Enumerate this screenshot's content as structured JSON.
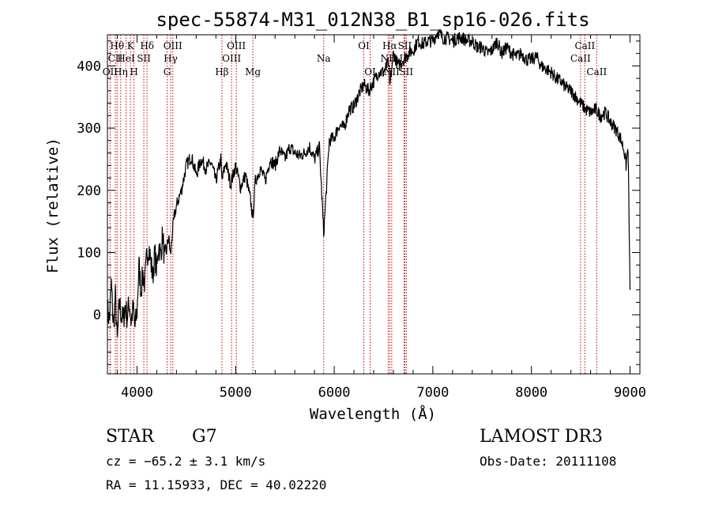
{
  "chart_data": {
    "type": "line",
    "title": "spec-55874-M31_012N38_B1_sp16-026.fits",
    "xlabel": "Wavelength (Å)",
    "ylabel": "Flux (relative)",
    "xlim": [
      3700,
      9100
    ],
    "ylim": [
      -95,
      450
    ],
    "xticks": [
      4000,
      5000,
      6000,
      7000,
      8000,
      9000
    ],
    "yticks": [
      0,
      100,
      200,
      300,
      400
    ],
    "series": [
      {
        "name": "flux",
        "x": [
          3700,
          3720,
          3740,
          3760,
          3780,
          3800,
          3820,
          3840,
          3860,
          3880,
          3900,
          3920,
          3940,
          3960,
          3980,
          4000,
          4020,
          4040,
          4060,
          4080,
          4100,
          4120,
          4140,
          4160,
          4180,
          4200,
          4220,
          4240,
          4260,
          4280,
          4300,
          4320,
          4340,
          4360,
          4380,
          4400,
          4450,
          4500,
          4550,
          4600,
          4650,
          4700,
          4750,
          4800,
          4850,
          4861,
          4900,
          4950,
          5000,
          5050,
          5100,
          5150,
          5175,
          5200,
          5250,
          5300,
          5350,
          5400,
          5450,
          5500,
          5550,
          5600,
          5650,
          5700,
          5750,
          5800,
          5850,
          5893,
          5950,
          6000,
          6050,
          6100,
          6150,
          6200,
          6250,
          6300,
          6350,
          6400,
          6450,
          6500,
          6550,
          6563,
          6600,
          6650,
          6700,
          6750,
          6800,
          6850,
          6900,
          6950,
          7000,
          7050,
          7100,
          7150,
          7200,
          7250,
          7300,
          7350,
          7400,
          7450,
          7500,
          7550,
          7600,
          7650,
          7700,
          7750,
          7800,
          7850,
          7900,
          7950,
          8000,
          8050,
          8100,
          8150,
          8200,
          8250,
          8300,
          8350,
          8400,
          8450,
          8500,
          8550,
          8600,
          8650,
          8700,
          8750,
          8800,
          8850,
          8900,
          8920,
          8940,
          8960,
          8980,
          9000
        ],
        "values": [
          10,
          -10,
          50,
          -20,
          30,
          -45,
          20,
          0,
          -10,
          15,
          -5,
          20,
          -10,
          10,
          -20,
          5,
          80,
          40,
          65,
          50,
          95,
          110,
          85,
          60,
          100,
          70,
          115,
          95,
          130,
          85,
          105,
          125,
          95,
          135,
          160,
          175,
          200,
          240,
          255,
          225,
          250,
          235,
          245,
          215,
          250,
          215,
          245,
          210,
          240,
          205,
          225,
          185,
          155,
          215,
          235,
          215,
          250,
          240,
          265,
          250,
          270,
          260,
          255,
          260,
          270,
          250,
          270,
          130,
          280,
          285,
          305,
          300,
          330,
          335,
          355,
          370,
          360,
          375,
          390,
          390,
          405,
          365,
          420,
          400,
          410,
          420,
          425,
          440,
          435,
          440,
          440,
          455,
          445,
          445,
          440,
          445,
          445,
          440,
          440,
          430,
          430,
          420,
          425,
          440,
          420,
          430,
          420,
          415,
          420,
          410,
          410,
          415,
          400,
          395,
          390,
          380,
          375,
          365,
          360,
          350,
          340,
          330,
          325,
          330,
          320,
          325,
          310,
          300,
          285,
          275,
          265,
          240,
          270,
          40
        ]
      }
    ],
    "lines": [
      {
        "name": "Hθ",
        "x": 3798,
        "row": 1
      },
      {
        "name": "CII",
        "x": 3780,
        "row": 2
      },
      {
        "name": "OII",
        "x": 3727,
        "row": 3
      },
      {
        "name": "Hη",
        "x": 3835,
        "row": 3
      },
      {
        "name": "K",
        "x": 3934,
        "row": 1
      },
      {
        "name": "HeI",
        "x": 3889,
        "row": 2
      },
      {
        "name": "H",
        "x": 3969,
        "row": 3
      },
      {
        "name": "Hδ",
        "x": 4102,
        "row": 1
      },
      {
        "name": "SII",
        "x": 4069,
        "row": 2
      },
      {
        "name": "OIII",
        "x": 4363,
        "row": 1
      },
      {
        "name": "Hγ",
        "x": 4341,
        "row": 2
      },
      {
        "name": "G",
        "x": 4305,
        "row": 3
      },
      {
        "name": "OIII",
        "x": 5007,
        "row": 1
      },
      {
        "name": "OIII",
        "x": 4959,
        "row": 2
      },
      {
        "name": "Hβ",
        "x": 4861,
        "row": 3
      },
      {
        "name": "Mg",
        "x": 5175,
        "row": 3
      },
      {
        "name": "Na",
        "x": 5893,
        "row": 2
      },
      {
        "name": "OI",
        "x": 6300,
        "row": 1
      },
      {
        "name": "OI",
        "x": 6364,
        "row": 3
      },
      {
        "name": "Hα",
        "x": 6563,
        "row": 1
      },
      {
        "name": "SII",
        "x": 6716,
        "row": 1
      },
      {
        "name": "NII",
        "x": 6548,
        "row": 2
      },
      {
        "name": "Li",
        "x": 6708,
        "row": 2
      },
      {
        "name": "NII",
        "x": 6583,
        "row": 3
      },
      {
        "name": "SII",
        "x": 6731,
        "row": 3
      },
      {
        "name": "CaII",
        "x": 8542,
        "row": 1
      },
      {
        "name": "CaII",
        "x": 8498,
        "row": 2
      },
      {
        "name": "CaII",
        "x": 8662,
        "row": 3
      }
    ]
  },
  "info": {
    "class": "STAR",
    "subclass": "G7",
    "survey": "LAMOST DR3",
    "cz": "cz = −65.2 ± 3.1 km/s",
    "obs_date": "Obs-Date: 20111108",
    "coords": "RA =  11.15933, DEC =  40.02220"
  }
}
